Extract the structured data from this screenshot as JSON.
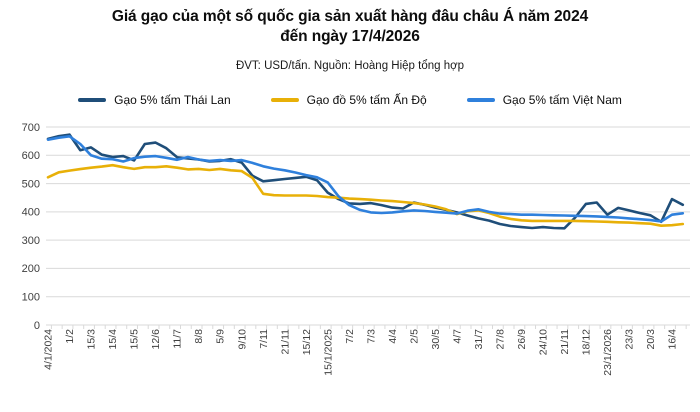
{
  "title": {
    "line1": "Giá gạo của một số quốc gia sản xuất hàng đâu châu Á năm 2024",
    "line2": "đến ngày 17/4/2026"
  },
  "subtitle": "ĐVT: USD/tấn. Nguồn: Hoàng Hiệp tổng hợp",
  "legend": [
    {
      "key": "thai-lan",
      "label": "Gạo 5% tấm Thái Lan",
      "color": "#1F4E79"
    },
    {
      "key": "an-do",
      "label": "Gạo đồ 5% tấm Ấn Độ",
      "color": "#E8B008"
    },
    {
      "key": "viet-nam",
      "label": "Gạo 5% tấm Việt Nam",
      "color": "#2F80DC"
    }
  ],
  "colors": {
    "grid": "#D9D9D9",
    "axis_text": "#404040",
    "background": "#FFFFFF"
  },
  "chart_data": {
    "type": "line",
    "title": "Giá gạo của một số quốc gia sản xuất hàng đâu châu Á năm 2024 đến ngày 17/4/2026",
    "unit_note": "ĐVT: USD/tấn. Nguồn: Hoàng Hiệp tổng hợp",
    "ylabel": "USD/tấn",
    "ylim": [
      0,
      700
    ],
    "ytick_step": 100,
    "yticks": [
      0,
      100,
      200,
      300,
      400,
      500,
      600,
      700
    ],
    "grid": "horizontal",
    "legend_position": "top",
    "x_tick_labels": [
      "4/1/2024",
      "1/2",
      "15/3",
      "15/4",
      "15/5",
      "12/6",
      "11/7",
      "8/8",
      "5/9",
      "9/10",
      "7/11",
      "21/11",
      "15/12",
      "15/1/2025",
      "7/2",
      "7/3",
      "4/4",
      "2/5",
      "30/5",
      "4/7",
      "31/7",
      "27/8",
      "26/9",
      "24/10",
      "21/11",
      "18/12",
      "23/1/2026",
      "23/3",
      "20/3",
      "16/4"
    ],
    "sampling_note": "values estimated from the plot at two samples per labelled tick (60 points per series); labelled ticks fall on even sample indices",
    "series": [
      {
        "key": "thai-lan",
        "name": "Gạo 5% tấm Thái Lan",
        "color": "#1F4E79",
        "values": [
          658,
          668,
          673,
          618,
          628,
          602,
          594,
          597,
          582,
          640,
          645,
          625,
          593,
          589,
          585,
          578,
          580,
          586,
          574,
          528,
          508,
          512,
          516,
          520,
          524,
          512,
          468,
          445,
          430,
          428,
          431,
          424,
          415,
          412,
          433,
          425,
          415,
          407,
          398,
          387,
          377,
          369,
          357,
          350,
          346,
          343,
          346,
          343,
          342,
          380,
          428,
          433,
          390,
          414,
          405,
          396,
          388,
          365,
          445,
          425
        ]
      },
      {
        "key": "an-do",
        "name": "Gạo đồ 5% tấm Ấn Độ",
        "color": "#E8B008",
        "values": [
          522,
          540,
          546,
          551,
          556,
          560,
          565,
          558,
          552,
          558,
          558,
          561,
          556,
          550,
          552,
          548,
          552,
          547,
          544,
          520,
          464,
          459,
          458,
          458,
          458,
          456,
          452,
          450,
          447,
          445,
          443,
          440,
          438,
          435,
          431,
          426,
          419,
          409,
          392,
          402,
          405,
          396,
          383,
          375,
          370,
          368,
          368,
          368,
          368,
          368,
          367,
          366,
          365,
          363,
          362,
          360,
          358,
          351,
          353,
          357
        ]
      },
      {
        "key": "viet-nam",
        "name": "Gạo 5% tấm Việt Nam",
        "color": "#2F80DC",
        "values": [
          655,
          662,
          667,
          640,
          600,
          588,
          586,
          578,
          590,
          595,
          597,
          591,
          584,
          594,
          585,
          580,
          583,
          580,
          583,
          573,
          561,
          553,
          547,
          539,
          530,
          522,
          504,
          455,
          424,
          407,
          398,
          396,
          398,
          402,
          405,
          403,
          400,
          397,
          394,
          404,
          409,
          400,
          394,
          392,
          390,
          390,
          389,
          388,
          387,
          386,
          385,
          384,
          382,
          380,
          377,
          374,
          371,
          366,
          390,
          395
        ]
      }
    ]
  }
}
